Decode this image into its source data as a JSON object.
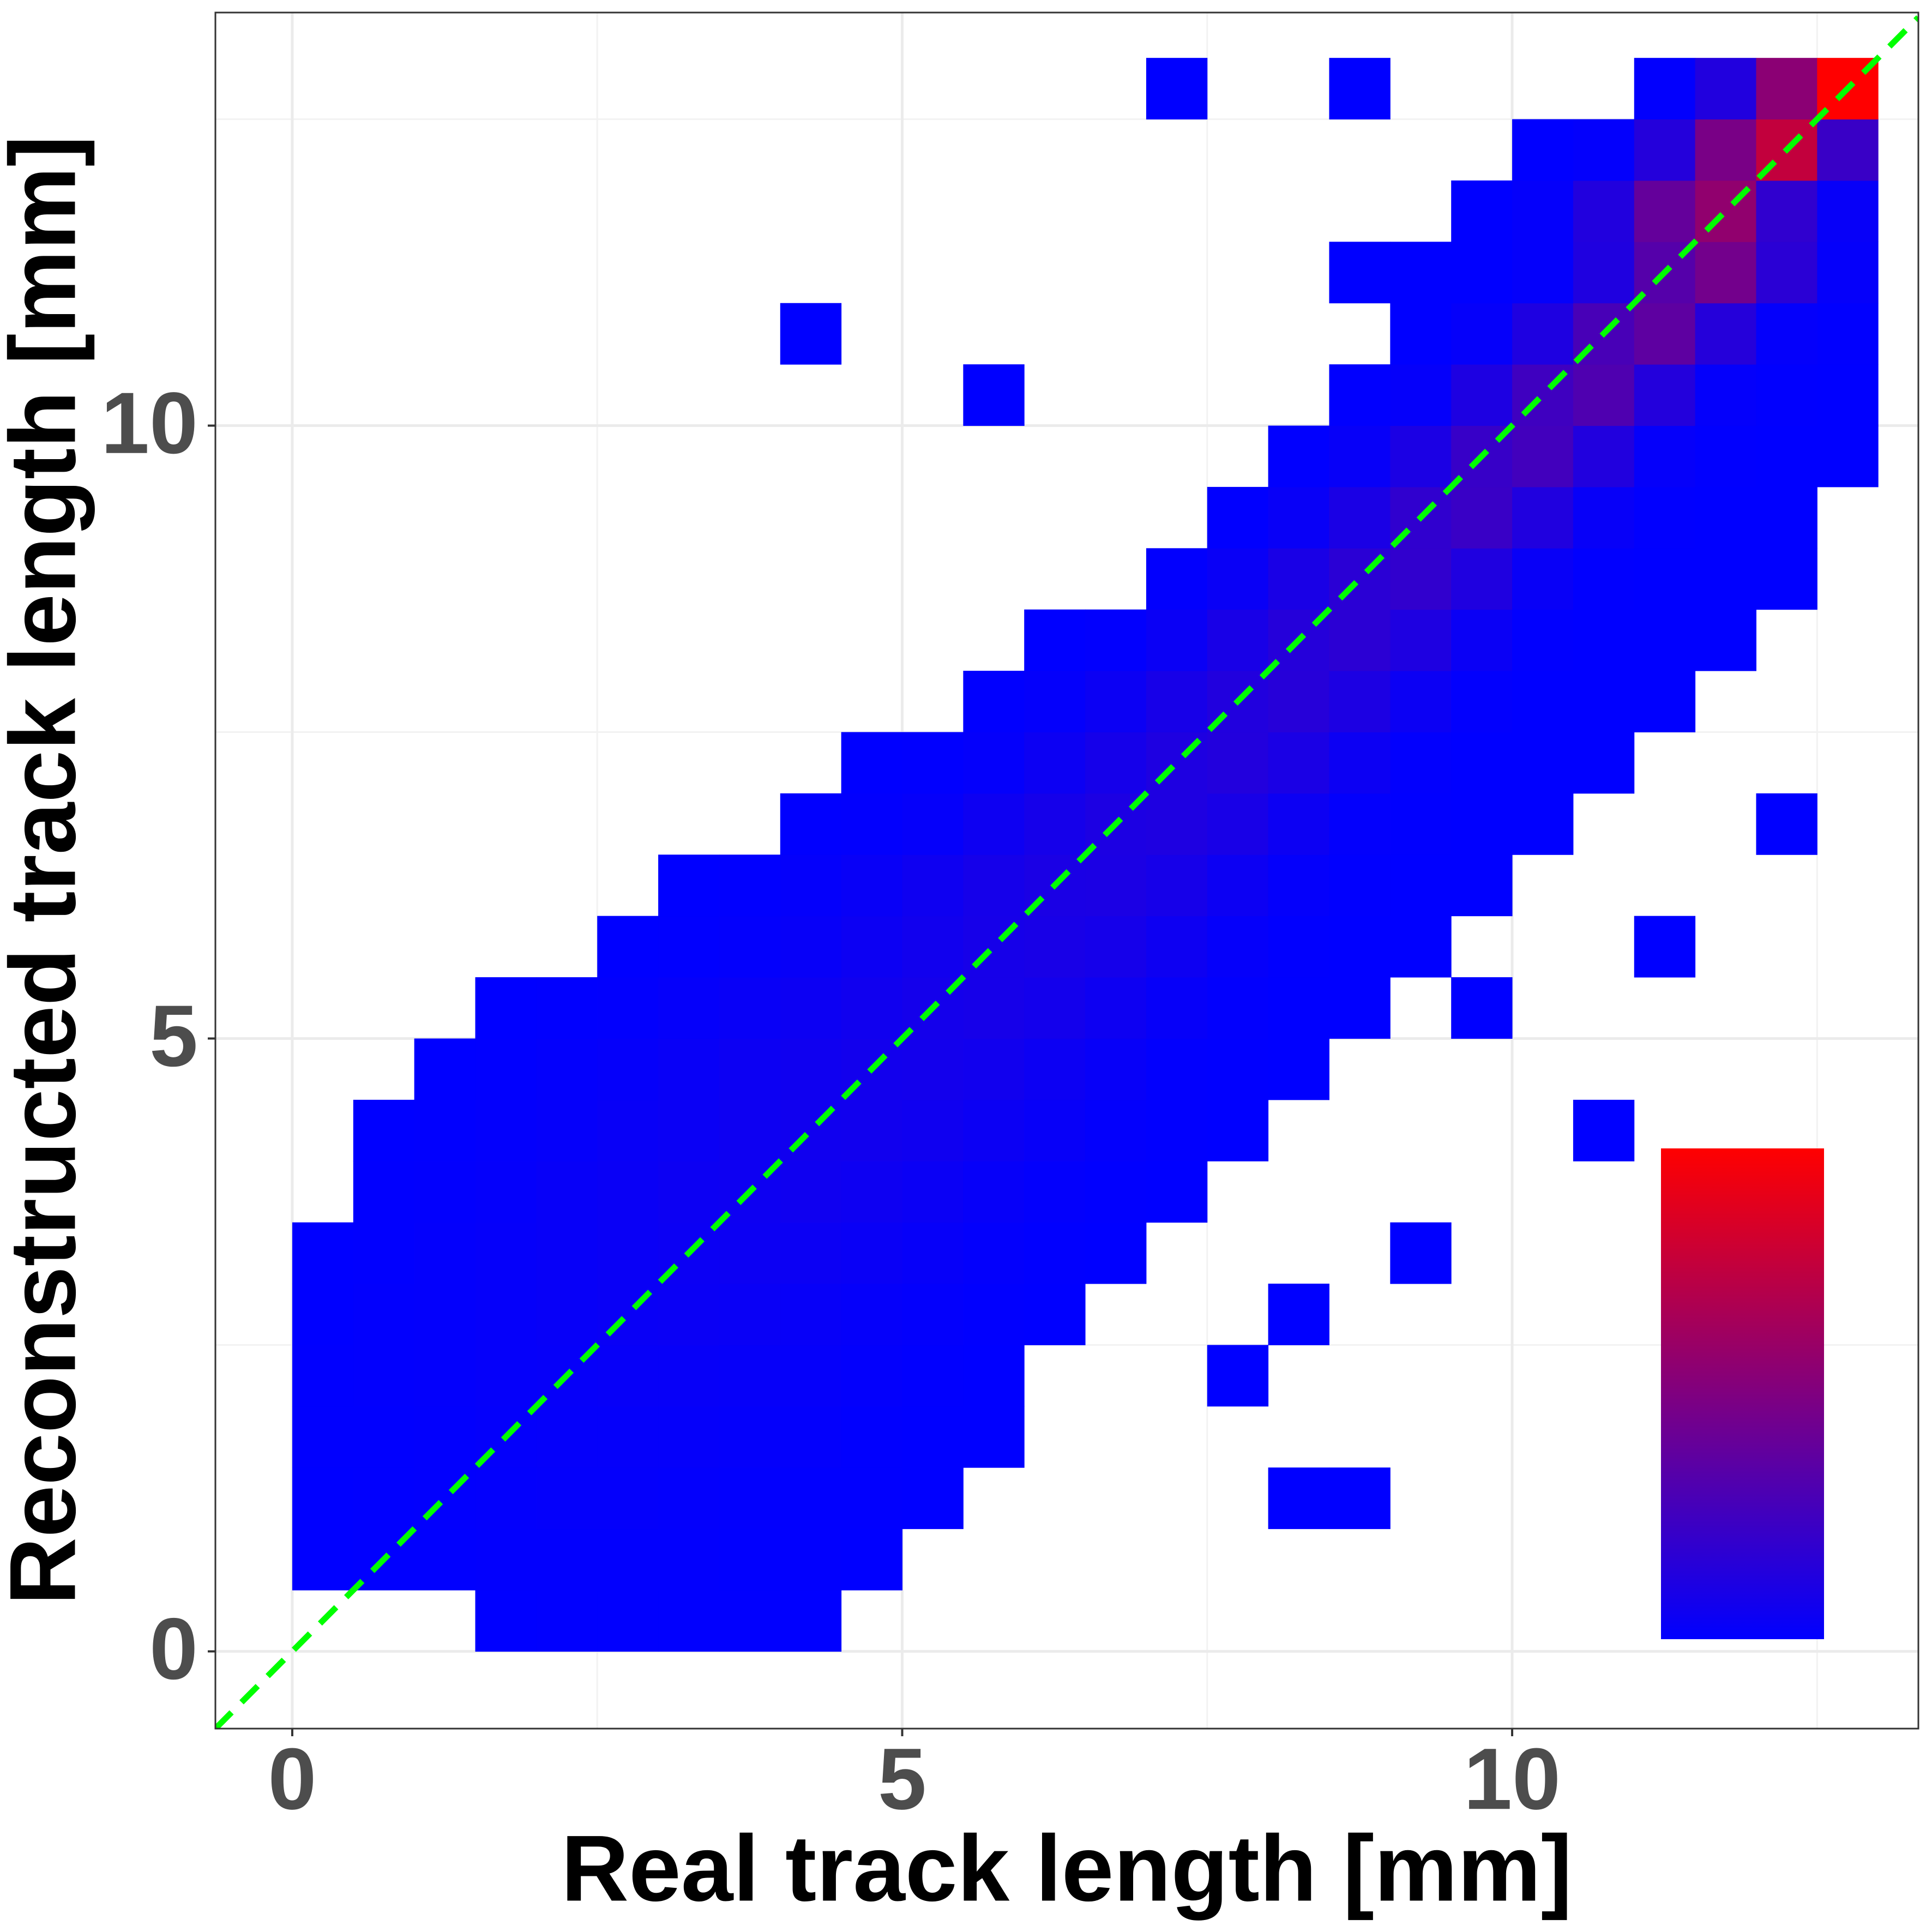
{
  "chart_data": {
    "type": "heatmap2d",
    "x_label": "Real track length [mm]",
    "y_label": "Reconstructed track length [mm]",
    "xlim": [
      -0.63,
      13.33
    ],
    "ylim": [
      -0.63,
      13.37
    ],
    "xticks": [
      0,
      5,
      10
    ],
    "yticks": [
      0,
      5,
      10
    ],
    "minor_xticks": [
      2.5,
      7.5,
      12.5
    ],
    "minor_yticks": [
      2.5,
      7.5,
      12.5
    ],
    "grid": true,
    "colorscale": [
      "#0000ff",
      "#ff0000"
    ],
    "zlim": [
      1,
      420
    ],
    "reference_line": {
      "slope": 1,
      "intercept": 0,
      "color": "#00ff00"
    },
    "xbins": [
      0,
      0.5,
      1,
      1.5,
      2,
      2.5,
      3,
      3.5,
      4,
      4.5,
      5,
      5.5,
      6,
      6.5,
      7,
      7.5,
      8,
      8.5,
      9,
      9.5,
      10,
      10.5,
      11,
      11.5,
      12,
      12.5,
      13
    ],
    "ybins": [
      0,
      0.5,
      1,
      1.5,
      2,
      2.5,
      3,
      3.5,
      4,
      4.5,
      5,
      5.5,
      6,
      6.5,
      7,
      7.5,
      8,
      8.5,
      9,
      9.5,
      10,
      10.5,
      11,
      11.5,
      12,
      12.5,
      13
    ],
    "counts": [
      [
        null,
        null,
        null,
        1,
        2,
        3,
        3,
        2,
        1,
        null,
        null,
        null,
        null,
        null,
        null,
        null,
        null,
        null,
        null,
        null,
        null,
        null,
        null,
        null,
        null,
        null
      ],
      [
        1,
        2,
        3,
        4,
        5,
        5,
        4,
        3,
        2,
        1,
        null,
        null,
        null,
        null,
        null,
        null,
        null,
        null,
        null,
        null,
        null,
        null,
        null,
        null,
        null,
        null
      ],
      [
        1,
        3,
        4,
        6,
        7,
        7,
        6,
        5,
        3,
        2,
        1,
        null,
        null,
        null,
        null,
        null,
        1,
        1,
        null,
        null,
        null,
        null,
        null,
        null,
        null,
        null
      ],
      [
        2,
        3,
        5,
        7,
        9,
        10,
        9,
        8,
        6,
        3,
        1,
        1,
        null,
        null,
        null,
        null,
        null,
        null,
        null,
        null,
        null,
        null,
        null,
        null,
        null,
        null
      ],
      [
        2,
        4,
        6,
        9,
        11,
        13,
        13,
        11,
        9,
        6,
        3,
        1,
        null,
        null,
        null,
        1,
        null,
        null,
        null,
        null,
        null,
        null,
        null,
        null,
        null,
        null
      ],
      [
        1,
        4,
        6,
        9,
        12,
        15,
        17,
        16,
        13,
        10,
        6,
        3,
        1,
        null,
        null,
        null,
        1,
        null,
        null,
        null,
        null,
        null,
        null,
        null,
        null,
        null
      ],
      [
        1,
        3,
        6,
        9,
        12,
        16,
        19,
        21,
        19,
        15,
        11,
        6,
        3,
        1,
        null,
        null,
        null,
        null,
        1,
        null,
        null,
        null,
        null,
        null,
        null,
        null
      ],
      [
        null,
        2,
        5,
        8,
        12,
        16,
        20,
        23,
        25,
        22,
        17,
        11,
        6,
        2,
        1,
        null,
        null,
        null,
        null,
        null,
        null,
        null,
        null,
        null,
        null,
        null
      ],
      [
        null,
        1,
        3,
        6,
        10,
        14,
        18,
        23,
        27,
        29,
        26,
        19,
        12,
        6,
        2,
        1,
        null,
        null,
        null,
        null,
        null,
        1,
        null,
        null,
        null,
        null
      ],
      [
        null,
        null,
        1,
        3,
        6,
        10,
        14,
        20,
        26,
        31,
        33,
        29,
        21,
        12,
        5,
        2,
        1,
        null,
        null,
        null,
        null,
        null,
        null,
        null,
        null,
        null
      ],
      [
        null,
        null,
        null,
        1,
        2,
        5,
        9,
        14,
        21,
        28,
        34,
        37,
        32,
        22,
        11,
        4,
        1,
        1,
        null,
        1,
        null,
        null,
        null,
        null,
        null,
        null
      ],
      [
        null,
        null,
        null,
        null,
        null,
        1,
        3,
        6,
        12,
        20,
        29,
        37,
        41,
        35,
        22,
        10,
        3,
        1,
        1,
        null,
        null,
        null,
        1,
        null,
        null,
        null
      ],
      [
        null,
        null,
        null,
        null,
        null,
        null,
        1,
        3,
        7,
        14,
        24,
        35,
        43,
        46,
        37,
        20,
        7,
        2,
        1,
        1,
        null,
        null,
        null,
        null,
        null,
        null
      ],
      [
        null,
        null,
        null,
        null,
        null,
        null,
        null,
        null,
        2,
        4,
        10,
        22,
        36,
        47,
        51,
        40,
        20,
        6,
        2,
        1,
        1,
        null,
        null,
        null,
        1,
        null
      ],
      [
        null,
        null,
        null,
        null,
        null,
        null,
        null,
        null,
        null,
        1,
        3,
        8,
        20,
        36,
        50,
        57,
        44,
        20,
        5,
        1,
        1,
        1,
        null,
        null,
        null,
        null
      ],
      [
        null,
        null,
        null,
        null,
        null,
        null,
        null,
        null,
        null,
        null,
        null,
        2,
        7,
        19,
        38,
        56,
        64,
        47,
        19,
        4,
        1,
        1,
        1,
        null,
        null,
        null
      ],
      [
        null,
        null,
        null,
        null,
        null,
        null,
        null,
        null,
        null,
        null,
        null,
        null,
        1,
        5,
        17,
        40,
        62,
        72,
        50,
        17,
        3,
        1,
        1,
        1,
        null,
        null
      ],
      [
        null,
        null,
        null,
        null,
        null,
        null,
        null,
        null,
        null,
        null,
        null,
        null,
        null,
        null,
        4,
        16,
        42,
        70,
        82,
        52,
        14,
        2,
        1,
        1,
        1,
        null
      ],
      [
        null,
        null,
        null,
        null,
        null,
        null,
        null,
        null,
        null,
        null,
        null,
        null,
        null,
        null,
        null,
        3,
        14,
        44,
        80,
        95,
        54,
        12,
        2,
        1,
        1,
        null
      ],
      [
        null,
        null,
        null,
        null,
        null,
        null,
        null,
        null,
        null,
        null,
        null,
        null,
        null,
        null,
        null,
        null,
        2,
        12,
        46,
        92,
        110,
        55,
        10,
        2,
        1,
        1
      ],
      [
        null,
        null,
        null,
        null,
        null,
        null,
        null,
        null,
        null,
        null,
        null,
        1,
        null,
        null,
        null,
        null,
        null,
        2,
        10,
        48,
        105,
        130,
        58,
        8,
        2,
        1
      ],
      [
        null,
        null,
        null,
        null,
        null,
        null,
        null,
        null,
        1,
        null,
        null,
        null,
        null,
        null,
        null,
        null,
        null,
        null,
        1,
        9,
        50,
        120,
        155,
        62,
        8,
        2
      ],
      [
        null,
        null,
        null,
        null,
        null,
        null,
        null,
        null,
        null,
        null,
        null,
        null,
        null,
        null,
        null,
        null,
        null,
        1,
        1,
        1,
        8,
        52,
        140,
        190,
        70,
        10
      ],
      [
        null,
        null,
        null,
        null,
        null,
        null,
        null,
        null,
        null,
        null,
        null,
        null,
        null,
        null,
        null,
        null,
        null,
        null,
        null,
        1,
        7,
        55,
        165,
        240,
        80,
        12
      ],
      [
        null,
        null,
        null,
        null,
        null,
        null,
        null,
        null,
        null,
        null,
        null,
        null,
        null,
        null,
        null,
        null,
        null,
        null,
        null,
        null,
        1,
        6,
        60,
        200,
        320,
        95
      ],
      [
        null,
        null,
        null,
        null,
        null,
        null,
        null,
        null,
        null,
        null,
        null,
        null,
        null,
        null,
        1,
        null,
        null,
        1,
        null,
        null,
        null,
        null,
        4,
        55,
        230,
        420
      ]
    ]
  }
}
